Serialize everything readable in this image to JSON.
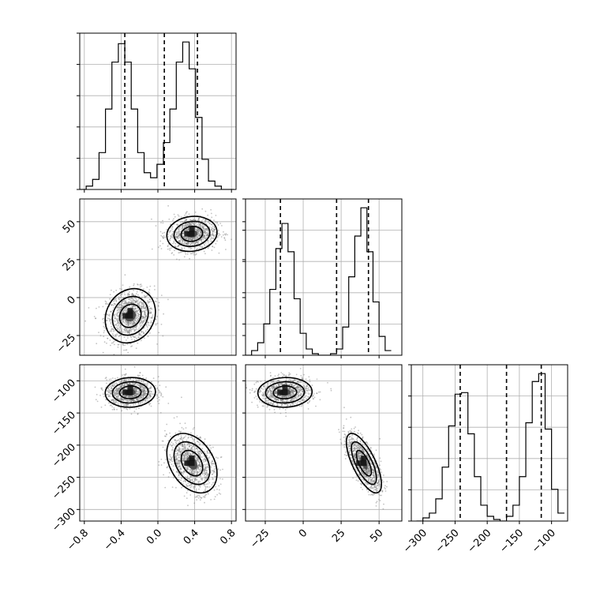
{
  "chart_data": {
    "type": "corner",
    "grid": true,
    "parameters": [
      {
        "range": [
          -0.85,
          0.85
        ],
        "ticks": [
          -0.8,
          -0.4,
          0.0,
          0.4,
          0.8
        ],
        "tick_labels": [
          "−0.8",
          "−0.4",
          "0.0",
          "0.4",
          "0.8"
        ],
        "quantiles": [
          -0.36,
          0.07,
          0.43
        ]
      },
      {
        "range": [
          -38,
          65
        ],
        "ticks": [
          -25,
          0,
          25,
          50
        ],
        "tick_labels": [
          "−25",
          "0",
          "25",
          "50"
        ],
        "quantiles": [
          -15,
          22,
          43
        ]
      },
      {
        "range": [
          -318,
          -75
        ],
        "ticks": [
          -300,
          -250,
          -200,
          -150,
          -100
        ],
        "tick_labels": [
          "−300",
          "−250",
          "−200",
          "−150",
          "−100"
        ],
        "quantiles": [
          -242,
          -170,
          -116
        ]
      }
    ],
    "histograms": [
      {
        "bin_edges": [
          -0.85,
          -0.78,
          -0.71,
          -0.64,
          -0.57,
          -0.5,
          -0.43,
          -0.36,
          -0.29,
          -0.22,
          -0.15,
          -0.08,
          -0.01,
          0.06,
          0.13,
          0.2,
          0.27,
          0.34,
          0.41,
          0.48,
          0.55,
          0.62,
          0.69,
          0.76,
          0.83
        ],
        "counts": [
          0,
          2,
          6,
          22,
          48,
          76,
          87,
          76,
          48,
          22,
          10,
          7,
          15,
          28,
          48,
          76,
          88,
          72,
          43,
          18,
          5,
          2,
          0,
          0
        ]
      },
      {
        "bin_edges": [
          -38,
          -34,
          -30,
          -26,
          -22,
          -18,
          -14,
          -10,
          -6,
          -2,
          2,
          6,
          10,
          14,
          18,
          22,
          26,
          30,
          34,
          38,
          42,
          46,
          50,
          54,
          58
        ],
        "counts": [
          0,
          3,
          8,
          20,
          42,
          68,
          84,
          66,
          36,
          14,
          4,
          1,
          0,
          0,
          1,
          4,
          18,
          50,
          76,
          94,
          66,
          34,
          12,
          3
        ]
      },
      {
        "bin_edges": [
          -310,
          -300,
          -290,
          -280,
          -270,
          -260,
          -250,
          -240,
          -230,
          -220,
          -210,
          -200,
          -190,
          -180,
          -170,
          -160,
          -150,
          -140,
          -130,
          -120,
          -110,
          -100,
          -90,
          -80
        ],
        "counts": [
          0,
          2,
          5,
          14,
          34,
          60,
          80,
          81,
          55,
          28,
          10,
          3,
          1,
          0,
          3,
          10,
          28,
          62,
          88,
          93,
          58,
          20,
          5
        ]
      }
    ],
    "scatter_panels": [
      {
        "x_param": 0,
        "y_param": 1,
        "clusters": [
          {
            "center": [
              -0.3,
              -12
            ],
            "sd": [
              0.13,
              8.5
            ],
            "rho": 0.15,
            "points": 1100
          },
          {
            "center": [
              0.37,
              42
            ],
            "sd": [
              0.13,
              5.5
            ],
            "rho": 0.1,
            "points": 1100
          }
        ]
      },
      {
        "x_param": 0,
        "y_param": 2,
        "clusters": [
          {
            "center": [
              -0.3,
              -118
            ],
            "sd": [
              0.13,
              11
            ],
            "rho": 0.05,
            "points": 1100
          },
          {
            "center": [
              0.37,
              -228
            ],
            "sd": [
              0.13,
              22
            ],
            "rho": -0.35,
            "points": 1100
          }
        ]
      },
      {
        "x_param": 1,
        "y_param": 2,
        "clusters": [
          {
            "center": [
              -12,
              -118
            ],
            "sd": [
              8.5,
              11
            ],
            "rho": 0.05,
            "points": 1100
          },
          {
            "center": [
              40,
              -228
            ],
            "sd": [
              5.5,
              22
            ],
            "rho": -0.7,
            "points": 1100
          }
        ]
      }
    ]
  }
}
